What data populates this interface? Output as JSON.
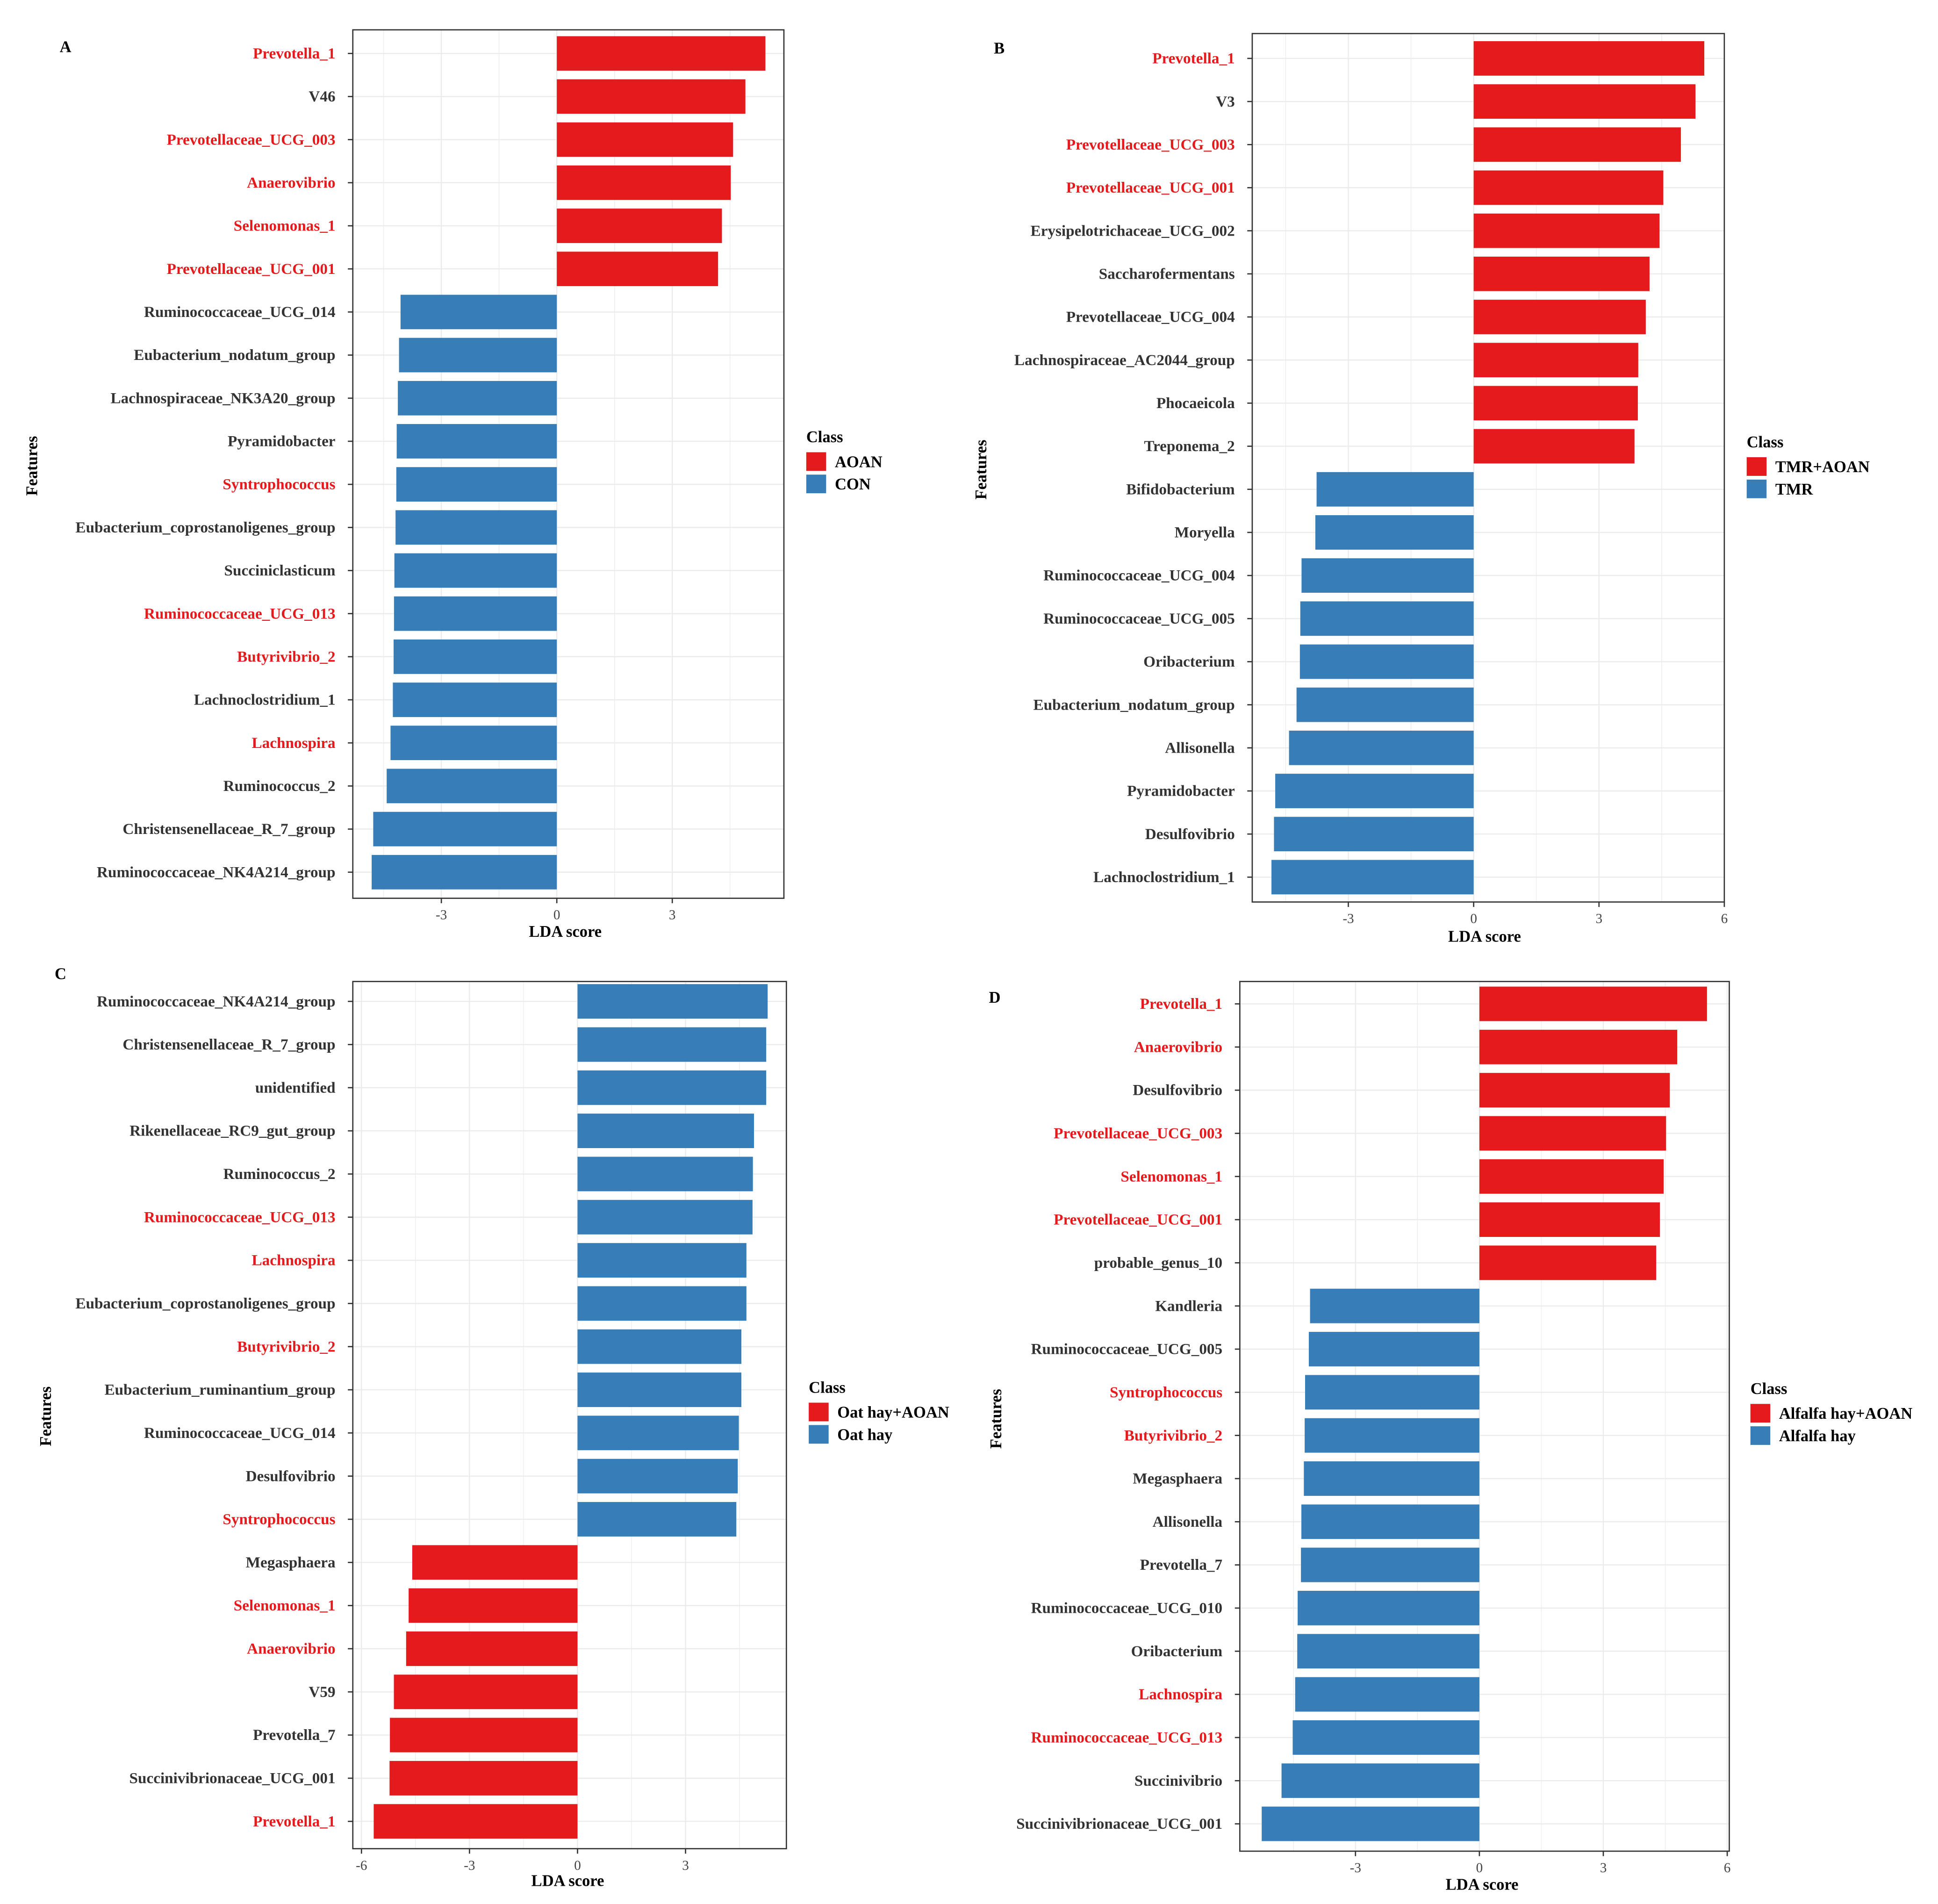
{
  "colors": {
    "red": "#E41A1C",
    "blue": "#377EB8",
    "highlight_label": "#E41A1C",
    "normal_label": "#333333"
  },
  "chart_data": [
    {
      "type": "bar",
      "orientation": "horizontal",
      "panel": "A",
      "xlabel": "LDA score",
      "ylabel": "Features",
      "xlim": [
        -5.3,
        5.9
      ],
      "xticks": [
        -3,
        0,
        3
      ],
      "grid": true,
      "legend": {
        "title": "Class",
        "placement": "right",
        "entries": [
          {
            "label": "AOAN",
            "color": "#E41A1C"
          },
          {
            "label": "CON",
            "color": "#377EB8"
          }
        ]
      },
      "features": [
        {
          "name": "Prevotella_1",
          "value": 5.42,
          "class": "AOAN",
          "highlight": true
        },
        {
          "name": "V46",
          "value": 4.9,
          "class": "AOAN",
          "highlight": false
        },
        {
          "name": "Prevotellaceae_UCG_003",
          "value": 4.58,
          "class": "AOAN",
          "highlight": true
        },
        {
          "name": "Anaerovibrio",
          "value": 4.52,
          "class": "AOAN",
          "highlight": true
        },
        {
          "name": "Selenomonas_1",
          "value": 4.29,
          "class": "AOAN",
          "highlight": true
        },
        {
          "name": "Prevotellaceae_UCG_001",
          "value": 4.19,
          "class": "AOAN",
          "highlight": true
        },
        {
          "name": "Ruminococcaceae_UCG_014",
          "value": -4.06,
          "class": "CON",
          "highlight": false
        },
        {
          "name": "Eubacterium_nodatum_group",
          "value": -4.1,
          "class": "CON",
          "highlight": false
        },
        {
          "name": "Lachnospiraceae_NK3A20_group",
          "value": -4.13,
          "class": "CON",
          "highlight": false
        },
        {
          "name": "Pyramidobacter",
          "value": -4.16,
          "class": "CON",
          "highlight": false
        },
        {
          "name": "Syntrophococcus",
          "value": -4.17,
          "class": "CON",
          "highlight": true
        },
        {
          "name": "Eubacterium_coprostanoligenes_group",
          "value": -4.19,
          "class": "CON",
          "highlight": false
        },
        {
          "name": "Succiniclasticum",
          "value": -4.22,
          "class": "CON",
          "highlight": false
        },
        {
          "name": "Ruminococcaceae_UCG_013",
          "value": -4.23,
          "class": "CON",
          "highlight": true
        },
        {
          "name": "Butyrivibrio_2",
          "value": -4.24,
          "class": "CON",
          "highlight": true
        },
        {
          "name": "Lachnoclostridium_1",
          "value": -4.26,
          "class": "CON",
          "highlight": false
        },
        {
          "name": "Lachnospira",
          "value": -4.32,
          "class": "CON",
          "highlight": true
        },
        {
          "name": "Ruminococcus_2",
          "value": -4.42,
          "class": "CON",
          "highlight": false
        },
        {
          "name": "Christensenellaceae_R_7_group",
          "value": -4.77,
          "class": "CON",
          "highlight": false
        },
        {
          "name": "Ruminococcaceae_NK4A214_group",
          "value": -4.81,
          "class": "CON",
          "highlight": false
        }
      ]
    },
    {
      "type": "bar",
      "orientation": "horizontal",
      "panel": "B",
      "xlabel": "LDA score",
      "ylabel": "Features",
      "xlim": [
        -5.3,
        6
      ],
      "xticks": [
        -3,
        0,
        3,
        6
      ],
      "grid": true,
      "legend": {
        "title": "Class",
        "placement": "right",
        "entries": [
          {
            "label": "TMR+AOAN",
            "color": "#E41A1C"
          },
          {
            "label": "TMR",
            "color": "#377EB8"
          }
        ]
      },
      "features": [
        {
          "name": "Prevotella_1",
          "value": 5.52,
          "class": "TMR+AOAN",
          "highlight": true
        },
        {
          "name": "V3",
          "value": 5.31,
          "class": "TMR+AOAN",
          "highlight": false
        },
        {
          "name": "Prevotellaceae_UCG_003",
          "value": 4.96,
          "class": "TMR+AOAN",
          "highlight": true
        },
        {
          "name": "Prevotellaceae_UCG_001",
          "value": 4.54,
          "class": "TMR+AOAN",
          "highlight": true
        },
        {
          "name": "Erysipelotrichaceae_UCG_002",
          "value": 4.45,
          "class": "TMR+AOAN",
          "highlight": false
        },
        {
          "name": "Saccharofermentans",
          "value": 4.21,
          "class": "TMR+AOAN",
          "highlight": false
        },
        {
          "name": "Prevotellaceae_UCG_004",
          "value": 4.12,
          "class": "TMR+AOAN",
          "highlight": false
        },
        {
          "name": "Lachnospiraceae_AC2044_group",
          "value": 3.94,
          "class": "TMR+AOAN",
          "highlight": false
        },
        {
          "name": "Phocaeicola",
          "value": 3.93,
          "class": "TMR+AOAN",
          "highlight": false
        },
        {
          "name": "Treponema_2",
          "value": 3.85,
          "class": "TMR+AOAN",
          "highlight": false
        },
        {
          "name": "Bifidobacterium",
          "value": -3.76,
          "class": "TMR",
          "highlight": false
        },
        {
          "name": "Moryella",
          "value": -3.79,
          "class": "TMR",
          "highlight": false
        },
        {
          "name": "Ruminococcaceae_UCG_004",
          "value": -4.12,
          "class": "TMR",
          "highlight": false
        },
        {
          "name": "Ruminococcaceae_UCG_005",
          "value": -4.15,
          "class": "TMR",
          "highlight": false
        },
        {
          "name": "Oribacterium",
          "value": -4.16,
          "class": "TMR",
          "highlight": false
        },
        {
          "name": "Eubacterium_nodatum_group",
          "value": -4.24,
          "class": "TMR",
          "highlight": false
        },
        {
          "name": "Allisonella",
          "value": -4.42,
          "class": "TMR",
          "highlight": false
        },
        {
          "name": "Pyramidobacter",
          "value": -4.75,
          "class": "TMR",
          "highlight": false
        },
        {
          "name": "Desulfovibrio",
          "value": -4.78,
          "class": "TMR",
          "highlight": false
        },
        {
          "name": "Lachnoclostridium_1",
          "value": -4.84,
          "class": "TMR",
          "highlight": false
        }
      ]
    },
    {
      "type": "bar",
      "orientation": "horizontal",
      "panel": "C",
      "xlabel": "LDA score",
      "ylabel": "Features",
      "xlim": [
        -6.24,
        5.8
      ],
      "xticks": [
        -6,
        -3,
        0,
        3
      ],
      "grid": true,
      "legend": {
        "title": "Class",
        "placement": "right",
        "entries": [
          {
            "label": "Oat hay+AOAN",
            "color": "#E41A1C"
          },
          {
            "label": "Oat hay",
            "color": "#377EB8"
          }
        ]
      },
      "features": [
        {
          "name": "Ruminococcaceae_NK4A214_group",
          "value": 5.28,
          "class": "Oat hay",
          "highlight": false
        },
        {
          "name": "Christensenellaceae_R_7_group",
          "value": 5.24,
          "class": "Oat hay",
          "highlight": false
        },
        {
          "name": "unidentified",
          "value": 5.24,
          "class": "Oat hay",
          "highlight": false
        },
        {
          "name": "Rikenellaceae_RC9_gut_group",
          "value": 4.9,
          "class": "Oat hay",
          "highlight": false
        },
        {
          "name": "Ruminococcus_2",
          "value": 4.87,
          "class": "Oat hay",
          "highlight": false
        },
        {
          "name": "Ruminococcaceae_UCG_013",
          "value": 4.86,
          "class": "Oat hay",
          "highlight": true
        },
        {
          "name": "Lachnospira",
          "value": 4.69,
          "class": "Oat hay",
          "highlight": true
        },
        {
          "name": "Eubacterium_coprostanoligenes_group",
          "value": 4.69,
          "class": "Oat hay",
          "highlight": false
        },
        {
          "name": "Butyrivibrio_2",
          "value": 4.55,
          "class": "Oat hay",
          "highlight": true
        },
        {
          "name": "Eubacterium_ruminantium_group",
          "value": 4.55,
          "class": "Oat hay",
          "highlight": false
        },
        {
          "name": "Ruminococcaceae_UCG_014",
          "value": 4.48,
          "class": "Oat hay",
          "highlight": false
        },
        {
          "name": "Desulfovibrio",
          "value": 4.45,
          "class": "Oat hay",
          "highlight": false
        },
        {
          "name": "Syntrophococcus",
          "value": 4.41,
          "class": "Oat hay",
          "highlight": true
        },
        {
          "name": "Megasphaera",
          "value": -4.59,
          "class": "Oat hay+AOAN",
          "highlight": false
        },
        {
          "name": "Selenomonas_1",
          "value": -4.69,
          "class": "Oat hay+AOAN",
          "highlight": true
        },
        {
          "name": "Anaerovibrio",
          "value": -4.76,
          "class": "Oat hay+AOAN",
          "highlight": true
        },
        {
          "name": "V59",
          "value": -5.1,
          "class": "Oat hay+AOAN",
          "highlight": false
        },
        {
          "name": "Prevotella_7",
          "value": -5.21,
          "class": "Oat hay+AOAN",
          "highlight": false
        },
        {
          "name": "Succinivibrionaceae_UCG_001",
          "value": -5.22,
          "class": "Oat hay+AOAN",
          "highlight": false
        },
        {
          "name": "Prevotella_1",
          "value": -5.66,
          "class": "Oat hay+AOAN",
          "highlight": true
        }
      ]
    },
    {
      "type": "bar",
      "orientation": "horizontal",
      "panel": "D",
      "xlabel": "LDA score",
      "ylabel": "Features",
      "xlim": [
        -5.8,
        6.05
      ],
      "xticks": [
        -3,
        0,
        3,
        6
      ],
      "grid": true,
      "legend": {
        "title": "Class",
        "placement": "right",
        "entries": [
          {
            "label": "Alfalfa hay+AOAN",
            "color": "#E41A1C"
          },
          {
            "label": "Alfalfa hay",
            "color": "#377EB8"
          }
        ]
      },
      "features": [
        {
          "name": "Prevotella_1",
          "value": 5.51,
          "class": "Alfalfa hay+AOAN",
          "highlight": true
        },
        {
          "name": "Anaerovibrio",
          "value": 4.79,
          "class": "Alfalfa hay+AOAN",
          "highlight": true
        },
        {
          "name": "Desulfovibrio",
          "value": 4.61,
          "class": "Alfalfa hay+AOAN",
          "highlight": false
        },
        {
          "name": "Prevotellaceae_UCG_003",
          "value": 4.52,
          "class": "Alfalfa hay+AOAN",
          "highlight": true
        },
        {
          "name": "Selenomonas_1",
          "value": 4.46,
          "class": "Alfalfa hay+AOAN",
          "highlight": true
        },
        {
          "name": "Prevotellaceae_UCG_001",
          "value": 4.37,
          "class": "Alfalfa hay+AOAN",
          "highlight": true
        },
        {
          "name": "probable_genus_10",
          "value": 4.28,
          "class": "Alfalfa hay+AOAN",
          "highlight": false
        },
        {
          "name": "Kandleria",
          "value": -4.1,
          "class": "Alfalfa hay",
          "highlight": false
        },
        {
          "name": "Ruminococcaceae_UCG_005",
          "value": -4.13,
          "class": "Alfalfa hay",
          "highlight": false
        },
        {
          "name": "Syntrophococcus",
          "value": -4.22,
          "class": "Alfalfa hay",
          "highlight": true
        },
        {
          "name": "Butyrivibrio_2",
          "value": -4.23,
          "class": "Alfalfa hay",
          "highlight": true
        },
        {
          "name": "Megasphaera",
          "value": -4.25,
          "class": "Alfalfa hay",
          "highlight": false
        },
        {
          "name": "Allisonella",
          "value": -4.31,
          "class": "Alfalfa hay",
          "highlight": false
        },
        {
          "name": "Prevotella_7",
          "value": -4.32,
          "class": "Alfalfa hay",
          "highlight": false
        },
        {
          "name": "Ruminococcaceae_UCG_010",
          "value": -4.4,
          "class": "Alfalfa hay",
          "highlight": false
        },
        {
          "name": "Oribacterium",
          "value": -4.41,
          "class": "Alfalfa hay",
          "highlight": false
        },
        {
          "name": "Lachnospira",
          "value": -4.46,
          "class": "Alfalfa hay",
          "highlight": true
        },
        {
          "name": "Ruminococcaceae_UCG_013",
          "value": -4.52,
          "class": "Alfalfa hay",
          "highlight": true
        },
        {
          "name": "Succinivibrio",
          "value": -4.79,
          "class": "Alfalfa hay",
          "highlight": false
        },
        {
          "name": "Succinivibrionaceae_UCG_001",
          "value": -5.27,
          "class": "Alfalfa hay",
          "highlight": false
        }
      ]
    }
  ]
}
